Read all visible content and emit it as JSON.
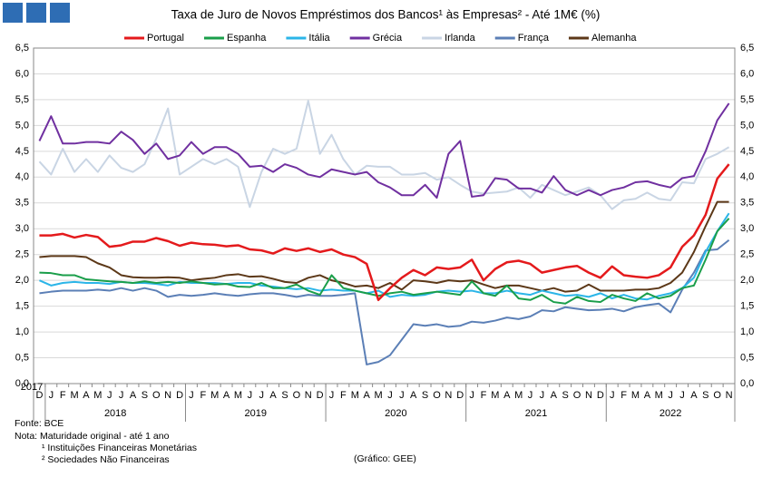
{
  "header": {
    "logo": true
  },
  "chart_data": {
    "type": "line",
    "title": "Taxa de Juro de Novos Empréstimos dos Bancos¹ às Empresas² - Até 1M€ (%)",
    "years": [
      {
        "label": "2017",
        "months": [
          "D"
        ]
      },
      {
        "label": "2018",
        "months": [
          "J",
          "F",
          "M",
          "A",
          "M",
          "J",
          "J",
          "A",
          "S",
          "O",
          "N",
          "D"
        ]
      },
      {
        "label": "2019",
        "months": [
          "J",
          "F",
          "M",
          "A",
          "M",
          "J",
          "J",
          "A",
          "S",
          "O",
          "N",
          "D"
        ]
      },
      {
        "label": "2020",
        "months": [
          "J",
          "F",
          "M",
          "A",
          "M",
          "J",
          "J",
          "A",
          "S",
          "O",
          "N",
          "D"
        ]
      },
      {
        "label": "2021",
        "months": [
          "J",
          "F",
          "M",
          "A",
          "M",
          "J",
          "J",
          "A",
          "S",
          "O",
          "N",
          "D"
        ]
      },
      {
        "label": "2022",
        "months": [
          "J",
          "F",
          "M",
          "A",
          "M",
          "J",
          "J",
          "A",
          "S",
          "O",
          "N"
        ]
      }
    ],
    "ylim": [
      0,
      6.5
    ],
    "yticks": [
      {
        "value": 0,
        "label": "0,0"
      },
      {
        "value": 0.5,
        "label": "0,5"
      },
      {
        "value": 1,
        "label": "1,0"
      },
      {
        "value": 1.5,
        "label": "1,5"
      },
      {
        "value": 2,
        "label": "2,0"
      },
      {
        "value": 2.5,
        "label": "2,5"
      },
      {
        "value": 3,
        "label": "3,0"
      },
      {
        "value": 3.5,
        "label": "3,5"
      },
      {
        "value": 4,
        "label": "4,0"
      },
      {
        "value": 4.5,
        "label": "4,5"
      },
      {
        "value": 5,
        "label": "5,0"
      },
      {
        "value": 5.5,
        "label": "5,5"
      },
      {
        "value": 6,
        "label": "6,0"
      },
      {
        "value": 6.5,
        "label": "6,5"
      }
    ],
    "grid": true,
    "legend": "top",
    "series": [
      {
        "name": "Portugal",
        "color": "#e41a1c",
        "values": [
          2.87,
          2.87,
          2.9,
          2.83,
          2.88,
          2.84,
          2.65,
          2.68,
          2.75,
          2.75,
          2.82,
          2.76,
          2.67,
          2.73,
          2.7,
          2.69,
          2.66,
          2.68,
          2.6,
          2.58,
          2.52,
          2.62,
          2.57,
          2.62,
          2.55,
          2.6,
          2.5,
          2.45,
          2.32,
          1.62,
          1.85,
          2.05,
          2.2,
          2.1,
          2.25,
          2.22,
          2.25,
          2.4,
          2.0,
          2.22,
          2.35,
          2.38,
          2.32,
          2.15,
          2.2,
          2.25,
          2.28,
          2.15,
          2.05,
          2.27,
          2.1,
          2.07,
          2.05,
          2.1,
          2.25,
          2.65,
          2.87,
          3.27,
          3.97,
          4.25
        ]
      },
      {
        "name": "Espanha",
        "color": "#1a9e4a",
        "values": [
          2.15,
          2.14,
          2.1,
          2.1,
          2.02,
          2.0,
          1.98,
          1.97,
          1.95,
          1.98,
          1.95,
          1.97,
          1.95,
          1.98,
          1.95,
          1.92,
          1.93,
          1.88,
          1.87,
          1.95,
          1.85,
          1.85,
          1.92,
          1.8,
          1.72,
          2.1,
          1.85,
          1.8,
          1.75,
          1.7,
          1.75,
          1.78,
          1.72,
          1.75,
          1.78,
          1.75,
          1.72,
          1.98,
          1.75,
          1.7,
          1.9,
          1.65,
          1.62,
          1.72,
          1.58,
          1.55,
          1.68,
          1.6,
          1.58,
          1.72,
          1.65,
          1.6,
          1.75,
          1.65,
          1.7,
          1.85,
          1.9,
          2.4,
          2.95,
          3.2
        ]
      },
      {
        "name": "Itália",
        "color": "#2bb5e8",
        "values": [
          2.0,
          1.9,
          1.95,
          1.97,
          1.95,
          1.95,
          1.93,
          1.97,
          1.95,
          1.95,
          1.93,
          1.9,
          1.97,
          1.95,
          1.95,
          1.95,
          1.93,
          1.95,
          1.95,
          1.9,
          1.88,
          1.85,
          1.83,
          1.85,
          1.8,
          1.82,
          1.8,
          1.8,
          1.75,
          1.8,
          1.68,
          1.72,
          1.7,
          1.72,
          1.78,
          1.8,
          1.78,
          1.8,
          1.75,
          1.75,
          1.8,
          1.75,
          1.72,
          1.8,
          1.75,
          1.7,
          1.72,
          1.68,
          1.75,
          1.65,
          1.72,
          1.65,
          1.63,
          1.7,
          1.75,
          1.85,
          2.05,
          2.55,
          2.95,
          3.3
        ]
      },
      {
        "name": "Grécia",
        "color": "#7030a0",
        "values": [
          4.7,
          5.18,
          4.65,
          4.65,
          4.68,
          4.68,
          4.65,
          4.88,
          4.72,
          4.45,
          4.65,
          4.35,
          4.42,
          4.68,
          4.45,
          4.58,
          4.58,
          4.45,
          4.2,
          4.22,
          4.1,
          4.25,
          4.18,
          4.05,
          4.0,
          4.15,
          4.1,
          4.05,
          4.1,
          3.9,
          3.8,
          3.65,
          3.65,
          3.85,
          3.6,
          4.45,
          4.7,
          3.62,
          3.65,
          3.98,
          3.95,
          3.78,
          3.78,
          3.7,
          4.02,
          3.75,
          3.65,
          3.75,
          3.65,
          3.75,
          3.8,
          3.9,
          3.92,
          3.85,
          3.8,
          3.98,
          4.02,
          4.5,
          5.1,
          5.43
        ]
      },
      {
        "name": "Irlanda",
        "color": "#c9d5e4",
        "values": [
          4.3,
          4.05,
          4.55,
          4.1,
          4.35,
          4.1,
          4.42,
          4.18,
          4.1,
          4.25,
          4.75,
          5.33,
          4.05,
          4.2,
          4.35,
          4.25,
          4.35,
          4.2,
          3.42,
          4.1,
          4.55,
          4.45,
          4.55,
          5.48,
          4.45,
          4.82,
          4.35,
          4.05,
          4.22,
          4.2,
          4.2,
          4.05,
          4.05,
          4.08,
          3.95,
          4.0,
          3.85,
          3.72,
          3.68,
          3.7,
          3.72,
          3.8,
          3.6,
          3.85,
          3.75,
          3.65,
          3.72,
          3.8,
          3.65,
          3.38,
          3.55,
          3.58,
          3.7,
          3.58,
          3.55,
          3.9,
          3.88,
          4.35,
          4.45,
          4.58
        ]
      },
      {
        "name": "França",
        "color": "#5b7fb6",
        "values": [
          1.75,
          1.78,
          1.8,
          1.8,
          1.8,
          1.82,
          1.8,
          1.85,
          1.8,
          1.85,
          1.8,
          1.68,
          1.72,
          1.7,
          1.72,
          1.75,
          1.72,
          1.7,
          1.73,
          1.75,
          1.75,
          1.72,
          1.68,
          1.72,
          1.7,
          1.7,
          1.72,
          1.75,
          0.37,
          0.42,
          0.55,
          0.85,
          1.15,
          1.12,
          1.15,
          1.1,
          1.12,
          1.2,
          1.18,
          1.22,
          1.28,
          1.25,
          1.3,
          1.42,
          1.4,
          1.48,
          1.45,
          1.42,
          1.43,
          1.45,
          1.4,
          1.48,
          1.52,
          1.55,
          1.38,
          1.82,
          2.15,
          2.58,
          2.6,
          2.78
        ]
      },
      {
        "name": "Alemanha",
        "color": "#5c3818",
        "values": [
          2.45,
          2.47,
          2.47,
          2.47,
          2.45,
          2.33,
          2.25,
          2.1,
          2.06,
          2.05,
          2.05,
          2.06,
          2.05,
          2.0,
          2.03,
          2.05,
          2.1,
          2.12,
          2.07,
          2.08,
          2.03,
          1.97,
          1.95,
          2.05,
          2.1,
          2.0,
          1.95,
          1.88,
          1.9,
          1.85,
          1.95,
          1.82,
          2.0,
          1.98,
          1.95,
          2.0,
          1.98,
          2.0,
          1.92,
          1.85,
          1.9,
          1.9,
          1.85,
          1.8,
          1.85,
          1.78,
          1.8,
          1.92,
          1.8,
          1.8,
          1.8,
          1.82,
          1.82,
          1.85,
          1.95,
          2.15,
          2.55,
          3.05,
          3.52,
          3.52
        ]
      }
    ]
  },
  "footer": {
    "source": "Fonte: BCE",
    "note": "Nota: Maturidade original - até 1 ano",
    "note1": "¹ Instituições Financeiras Monetárias",
    "note2": "² Sociedades Não Financeiras",
    "credit": "(Gráfico: GEE)"
  }
}
